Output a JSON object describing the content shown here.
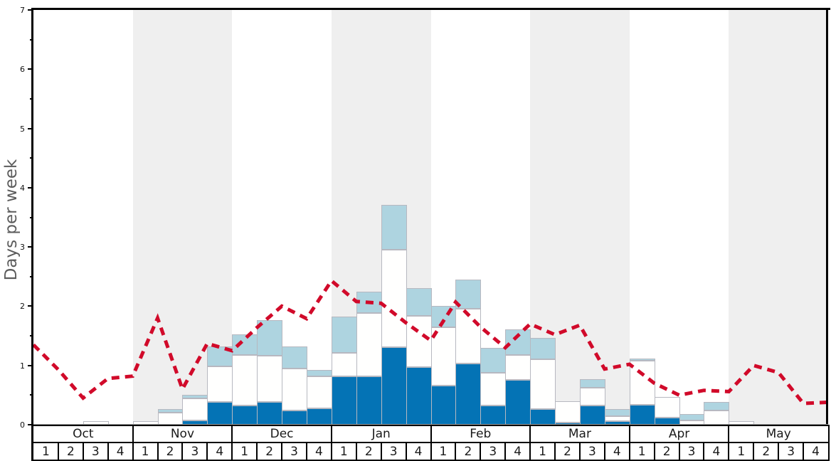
{
  "chart": {
    "ylabel": "Days per week",
    "y_ticks": [
      "0",
      "1",
      "2",
      "3",
      "4",
      "5",
      "6",
      "7"
    ],
    "months": [
      {
        "label": "Oct",
        "weeks": [
          "1",
          "2",
          "3",
          "4"
        ]
      },
      {
        "label": "Nov",
        "weeks": [
          "1",
          "2",
          "3",
          "4"
        ]
      },
      {
        "label": "Dec",
        "weeks": [
          "1",
          "2",
          "3",
          "4"
        ]
      },
      {
        "label": "Jan",
        "weeks": [
          "1",
          "2",
          "3",
          "4"
        ]
      },
      {
        "label": "Feb",
        "weeks": [
          "1",
          "2",
          "3",
          "4"
        ]
      },
      {
        "label": "Mar",
        "weeks": [
          "1",
          "2",
          "3",
          "4"
        ]
      },
      {
        "label": "Apr",
        "weeks": [
          "1",
          "2",
          "3",
          "4"
        ]
      },
      {
        "label": "May",
        "weeks": [
          "1",
          "2",
          "3",
          "4"
        ]
      }
    ]
  },
  "chart_data": {
    "type": "bar",
    "subtype": "stacked-bar-with-dashed-line",
    "title": "",
    "xlabel": "",
    "ylabel": "Days per week",
    "ylim": [
      0,
      7
    ],
    "grid": false,
    "legend": "none",
    "categories": [
      "Oct w1",
      "Oct w2",
      "Oct w3",
      "Oct w4",
      "Nov w1",
      "Nov w2",
      "Nov w3",
      "Nov w4",
      "Dec w1",
      "Dec w2",
      "Dec w3",
      "Dec w4",
      "Jan w1",
      "Jan w2",
      "Jan w3",
      "Jan w4",
      "Feb w1",
      "Feb w2",
      "Feb w3",
      "Feb w4",
      "Mar w1",
      "Mar w2",
      "Mar w3",
      "Mar w4",
      "Apr w1",
      "Apr w2",
      "Apr w3",
      "Apr w4",
      "May w1",
      "May w2",
      "May w3",
      "May w4"
    ],
    "series": [
      {
        "name": "dark-blue-segment",
        "color": "#0473b5",
        "values": [
          0,
          0,
          0,
          0,
          0,
          0,
          0.07,
          0.39,
          0.32,
          0.39,
          0.24,
          0.28,
          0.82,
          0.82,
          1.31,
          0.97,
          0.66,
          1.03,
          0.33,
          0.76,
          0.26,
          0.04,
          0.32,
          0.06,
          0.34,
          0.12,
          0,
          0,
          0,
          0,
          0,
          0
        ]
      },
      {
        "name": "white-segment",
        "color": "#fffffe",
        "values": [
          0,
          0,
          0.06,
          0,
          0.06,
          0.2,
          0.37,
          0.59,
          0.86,
          0.77,
          0.71,
          0.54,
          0.39,
          1.07,
          1.64,
          0.87,
          0.99,
          0.93,
          0.55,
          0.42,
          0.84,
          0.36,
          0.3,
          0.09,
          0.74,
          0.35,
          0.07,
          0.24,
          0.06,
          0,
          0,
          0
        ]
      },
      {
        "name": "light-blue-segment",
        "color": "#aed4e0",
        "values": [
          0,
          0,
          0,
          0,
          0,
          0.07,
          0.06,
          0.34,
          0.34,
          0.6,
          0.37,
          0.1,
          0.62,
          0.35,
          0.76,
          0.46,
          0.36,
          0.49,
          0.42,
          0.43,
          0.36,
          0,
          0.15,
          0.11,
          0.04,
          0,
          0.11,
          0.15,
          0,
          0,
          0,
          0
        ]
      }
    ],
    "line_series": {
      "name": "red-dashed-line",
      "color": "#d10a2a",
      "style": "dashed",
      "x_positions": "week-boundaries (33 points, one per week edge)",
      "values": [
        1.35,
        0.93,
        0.45,
        0.78,
        0.82,
        1.8,
        0.6,
        1.37,
        1.25,
        1.64,
        2.0,
        1.79,
        2.43,
        2.08,
        2.05,
        1.72,
        1.42,
        2.07,
        1.65,
        1.3,
        1.7,
        1.52,
        1.68,
        0.94,
        1.02,
        0.7,
        0.5,
        0.58,
        0.56,
        1.0,
        0.88,
        0.36,
        0.38
      ]
    },
    "background_bands": {
      "shaded_months": [
        "Nov",
        "Jan",
        "Mar",
        "May"
      ],
      "shade_color": "#efefef",
      "plain_color": "#ffffff"
    },
    "colors": {
      "bar_border": "#b7b8c0",
      "axis": "#000000",
      "baseline": "#9a9a9a",
      "ylabel_text": "#5c5c5c",
      "table_border": "#000000",
      "table_text": "#1a1a1a"
    }
  }
}
